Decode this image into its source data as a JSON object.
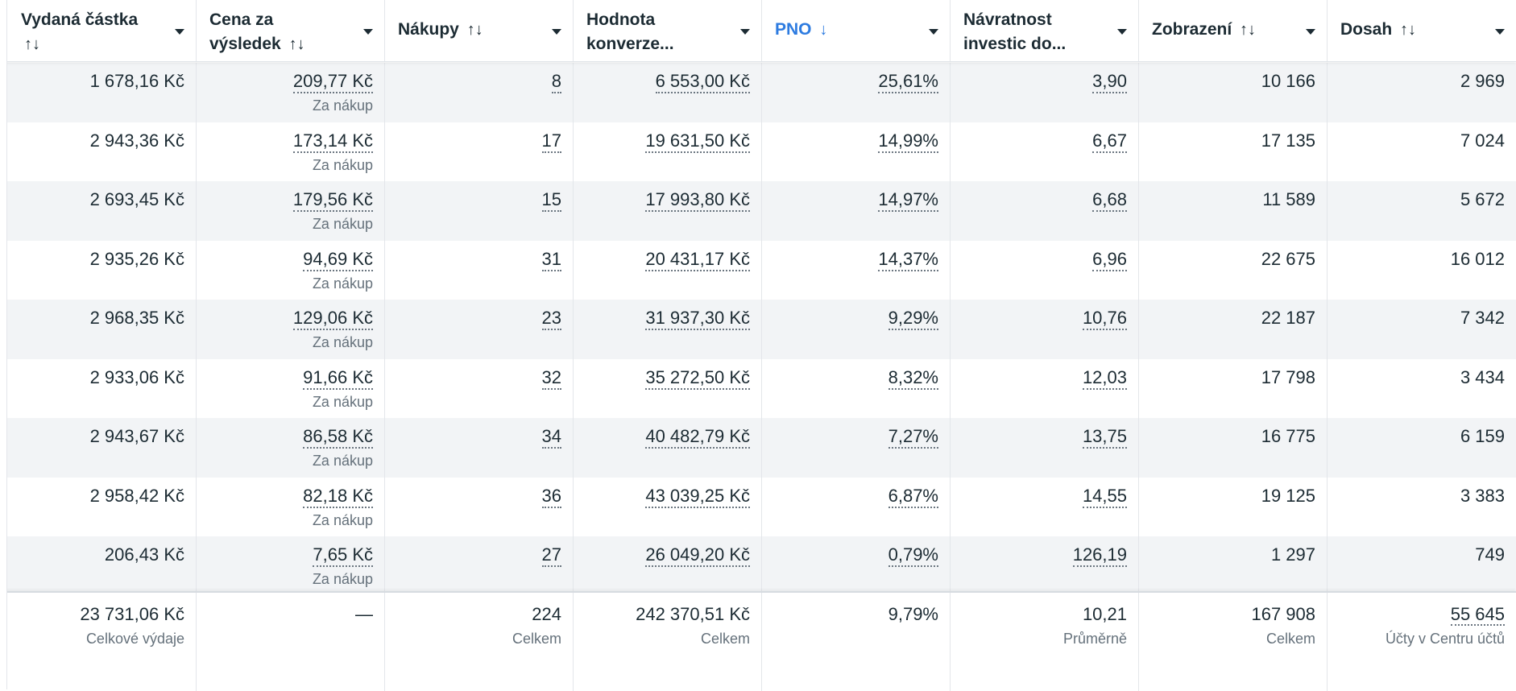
{
  "header": {
    "columns": [
      {
        "line1": "Vydaná částka",
        "line2": "",
        "sort_icon": "↑↓"
      },
      {
        "line1": "Cena za",
        "line2": "výsledek",
        "sort_icon": "↑↓"
      },
      {
        "line1": "Nákupy",
        "sort_icon": "↑↓"
      },
      {
        "line1": "Hodnota",
        "line2": "konverze..."
      },
      {
        "line1": "PNO",
        "sort_icon": "↓"
      },
      {
        "line1": "Návratnost",
        "line2": "investic do..."
      },
      {
        "line1": "Zobrazení",
        "sort_icon": "↑↓"
      },
      {
        "line1": "Dosah",
        "sort_icon": "↑↓"
      }
    ]
  },
  "rows": [
    {
      "spend": "1 678,16 Kč",
      "cost": "209,77 Kč",
      "cost_sub": "Za nákup",
      "purchases": "8",
      "value": "6 553,00 Kč",
      "pno": "25,61%",
      "roas": "3,90",
      "impressions": "10 166",
      "reach": "2 969"
    },
    {
      "spend": "2 943,36 Kč",
      "cost": "173,14 Kč",
      "cost_sub": "Za nákup",
      "purchases": "17",
      "value": "19 631,50 Kč",
      "pno": "14,99%",
      "roas": "6,67",
      "impressions": "17 135",
      "reach": "7 024"
    },
    {
      "spend": "2 693,45 Kč",
      "cost": "179,56 Kč",
      "cost_sub": "Za nákup",
      "purchases": "15",
      "value": "17 993,80 Kč",
      "pno": "14,97%",
      "roas": "6,68",
      "impressions": "11 589",
      "reach": "5 672"
    },
    {
      "spend": "2 935,26 Kč",
      "cost": "94,69 Kč",
      "cost_sub": "Za nákup",
      "purchases": "31",
      "value": "20 431,17 Kč",
      "pno": "14,37%",
      "roas": "6,96",
      "impressions": "22 675",
      "reach": "16 012"
    },
    {
      "spend": "2 968,35 Kč",
      "cost": "129,06 Kč",
      "cost_sub": "Za nákup",
      "purchases": "23",
      "value": "31 937,30 Kč",
      "pno": "9,29%",
      "roas": "10,76",
      "impressions": "22 187",
      "reach": "7 342"
    },
    {
      "spend": "2 933,06 Kč",
      "cost": "91,66 Kč",
      "cost_sub": "Za nákup",
      "purchases": "32",
      "value": "35 272,50 Kč",
      "pno": "8,32%",
      "roas": "12,03",
      "impressions": "17 798",
      "reach": "3 434"
    },
    {
      "spend": "2 943,67 Kč",
      "cost": "86,58 Kč",
      "cost_sub": "Za nákup",
      "purchases": "34",
      "value": "40 482,79 Kč",
      "pno": "7,27%",
      "roas": "13,75",
      "impressions": "16 775",
      "reach": "6 159"
    },
    {
      "spend": "2 958,42 Kč",
      "cost": "82,18 Kč",
      "cost_sub": "Za nákup",
      "purchases": "36",
      "value": "43 039,25 Kč",
      "pno": "6,87%",
      "roas": "14,55",
      "impressions": "19 125",
      "reach": "3 383"
    },
    {
      "spend": "206,43 Kč",
      "cost": "7,65 Kč",
      "cost_sub": "Za nákup",
      "purchases": "27",
      "value": "26 049,20 Kč",
      "pno": "0,79%",
      "roas": "126,19",
      "impressions": "1 297",
      "reach": "749"
    }
  ],
  "footer": {
    "spend": "23 731,06 Kč",
    "spend_sub": "Celkové výdaje",
    "cost": "—",
    "purchases": "224",
    "purchases_sub": "Celkem",
    "value": "242 370,51 Kč",
    "value_sub": "Celkem",
    "pno": "9,79%",
    "roas": "10,21",
    "roas_sub": "Průměrně",
    "impressions": "167 908",
    "impressions_sub": "Celkem",
    "reach": "55 645",
    "reach_sub": "Účty v Centru účtů"
  },
  "colors": {
    "accent": "#2d7be0",
    "text": "#1c2b33",
    "subtext": "#65717b",
    "stripe": "#f2f4f6"
  }
}
